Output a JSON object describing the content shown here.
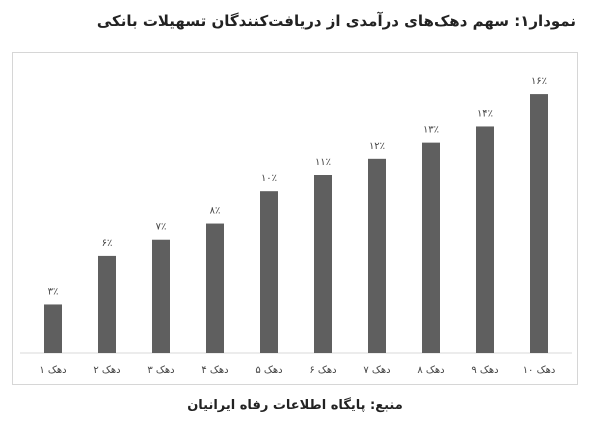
{
  "title": "نمودار۱: سهم دهک‌های درآمدی از دریافت‌کنندگان تسهیلات بانکی",
  "source": "منبع: پایگاه اطلاعات رفاه ایرانیان",
  "colors": {
    "bar": "#5f5f5f",
    "axis": "#d9d9d9",
    "frame": "#d6d6d6",
    "text": "#444444"
  },
  "chart_data": {
    "type": "bar",
    "categories": [
      "دهک ۱",
      "دهک ۲",
      "دهک ۳",
      "دهک ۴",
      "دهک ۵",
      "دهک ۶",
      "دهک ۷",
      "دهک ۸",
      "دهک ۹",
      "دهک ۱۰"
    ],
    "values": [
      3,
      6,
      7,
      8,
      10,
      11,
      12,
      13,
      14,
      16
    ],
    "data_labels": [
      "۳٪",
      "۶٪",
      "۷٪",
      "۸٪",
      "۱۰٪",
      "۱۱٪",
      "۱۲٪",
      "۱۳٪",
      "۱۴٪",
      "۱۶٪"
    ],
    "unit": "%",
    "ylim": [
      0,
      16.5
    ],
    "grid": false,
    "legend": "none"
  }
}
